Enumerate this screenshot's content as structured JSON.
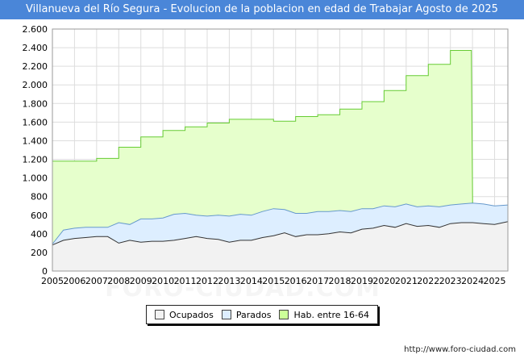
{
  "chart_data": {
    "type": "area",
    "title": "Villanueva del Río Segura - Evolucion de la poblacion en edad de Trabajar Agosto de 2025",
    "ylim": [
      0,
      2600
    ],
    "yticks": [
      0,
      200,
      400,
      600,
      800,
      1000,
      1200,
      1400,
      1600,
      1800,
      2000,
      2200,
      2400,
      2600
    ],
    "ytick_labels": [
      "0",
      "200",
      "400",
      "600",
      "800",
      "1.000",
      "1.200",
      "1.400",
      "1.600",
      "1.800",
      "2.000",
      "2.200",
      "2.400",
      "2.600"
    ],
    "xlim": [
      2005,
      2025.6
    ],
    "xtick_labels": [
      "2005",
      "2006",
      "2007",
      "2008",
      "2009",
      "2010",
      "2011",
      "2012",
      "2013",
      "2014",
      "2015",
      "2016",
      "2017",
      "2018",
      "2019",
      "2020",
      "2021",
      "2022",
      "2023",
      "2024",
      "2025"
    ],
    "grid": true,
    "legend_position": "bottom-center",
    "series": [
      {
        "name": "Hab. entre 16-64",
        "color": "#e6ffcc",
        "stroke": "#66cc33",
        "x": [
          2005,
          2006,
          2007,
          2008,
          2009,
          2010,
          2011,
          2012,
          2013,
          2014,
          2015,
          2016,
          2017,
          2018,
          2019,
          2020,
          2021,
          2022,
          2023,
          2023.95
        ],
        "values": [
          1180,
          1180,
          1210,
          1330,
          1440,
          1510,
          1550,
          1590,
          1630,
          1630,
          1610,
          1660,
          1680,
          1740,
          1820,
          1940,
          2100,
          2220,
          2370,
          2370
        ]
      },
      {
        "name": "Parados",
        "color": "#ddeeff",
        "stroke": "#6699cc",
        "x": [
          2005,
          2005.5,
          2006,
          2006.5,
          2007,
          2007.5,
          2008,
          2008.5,
          2009,
          2009.5,
          2010,
          2010.5,
          2011,
          2011.5,
          2012,
          2012.5,
          2013,
          2013.5,
          2014,
          2014.5,
          2015,
          2015.5,
          2016,
          2016.5,
          2017,
          2017.5,
          2018,
          2018.5,
          2019,
          2019.5,
          2020,
          2020.5,
          2021,
          2021.5,
          2022,
          2022.5,
          2023,
          2023.5,
          2024,
          2024.5,
          2025,
          2025.6
        ],
        "values": [
          290,
          440,
          460,
          470,
          470,
          470,
          520,
          500,
          560,
          560,
          570,
          610,
          620,
          600,
          590,
          600,
          590,
          610,
          600,
          640,
          670,
          660,
          620,
          620,
          640,
          640,
          650,
          640,
          670,
          670,
          700,
          690,
          720,
          690,
          700,
          690,
          710,
          720,
          730,
          720,
          700,
          710
        ]
      },
      {
        "name": "Ocupados",
        "color": "#f2f2f2",
        "stroke": "#333333",
        "x": [
          2005,
          2005.5,
          2006,
          2006.5,
          2007,
          2007.5,
          2008,
          2008.5,
          2009,
          2009.5,
          2010,
          2010.5,
          2011,
          2011.5,
          2012,
          2012.5,
          2013,
          2013.5,
          2014,
          2014.5,
          2015,
          2015.5,
          2016,
          2016.5,
          2017,
          2017.5,
          2018,
          2018.5,
          2019,
          2019.5,
          2020,
          2020.5,
          2021,
          2021.5,
          2022,
          2022.5,
          2023,
          2023.5,
          2024,
          2024.5,
          2025,
          2025.6
        ],
        "values": [
          280,
          330,
          350,
          360,
          370,
          370,
          300,
          330,
          310,
          320,
          320,
          330,
          350,
          370,
          350,
          340,
          310,
          330,
          330,
          360,
          380,
          410,
          370,
          390,
          390,
          400,
          420,
          410,
          450,
          460,
          490,
          470,
          510,
          480,
          490,
          470,
          510,
          520,
          520,
          510,
          500,
          530
        ]
      }
    ]
  },
  "source": "http://www.foro-ciudad.com",
  "watermark": "FORO-CIUDAD.COM"
}
